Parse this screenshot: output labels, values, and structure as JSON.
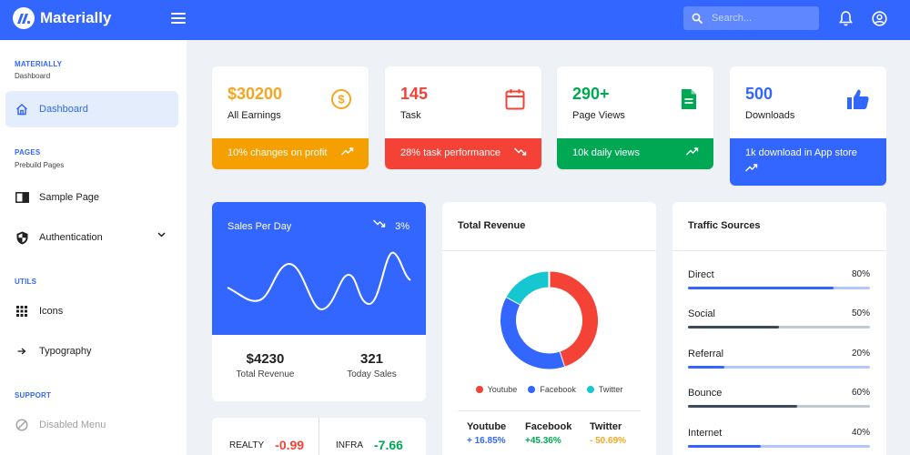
{
  "app": {
    "title": "Materially"
  },
  "header": {
    "search_placeholder": "Search..."
  },
  "sidebar": {
    "sections": [
      {
        "title": "MATERIALLY",
        "subtitle": "Dashboard"
      },
      {
        "title": "PAGES",
        "subtitle": "Prebuild Pages"
      },
      {
        "title": "UTILS"
      },
      {
        "title": "SUPPORT"
      }
    ],
    "items": [
      {
        "label": "Dashboard",
        "icon": "home-icon",
        "active": true
      },
      {
        "label": "Sample Page",
        "icon": "chrome-reader-icon"
      },
      {
        "label": "Authentication",
        "icon": "security-shield-icon"
      },
      {
        "label": "Icons",
        "icon": "apps-grid-icon"
      },
      {
        "label": "Typography",
        "icon": "arrow-right-icon"
      },
      {
        "label": "Disabled Menu",
        "icon": "block-icon",
        "disabled": true
      }
    ]
  },
  "stats": [
    {
      "value": "$30200",
      "label": "All Earnings",
      "footer": "10% changes on profit",
      "color": "#f5a623",
      "footer_bg": "#f5a000"
    },
    {
      "value": "145",
      "label": "Task",
      "footer": "28% task performance",
      "color": "#f44336",
      "footer_bg": "#f44336"
    },
    {
      "value": "290+",
      "label": "Page Views",
      "footer": "10k daily views",
      "color": "#00a854",
      "footer_bg": "#00a854"
    },
    {
      "value": "500",
      "label": "Downloads",
      "footer": "1k download in App store",
      "color": "#3366ff",
      "footer_bg": "#3366ff"
    }
  ],
  "sales": {
    "title": "Sales Per Day",
    "change": "3%",
    "total_revenue_value": "$4230",
    "total_revenue_label": "Total Revenue",
    "today_sales_value": "321",
    "today_sales_label": "Today Sales"
  },
  "tickers": [
    {
      "name": "REALTY",
      "value": "-0.99"
    },
    {
      "name": "INFRA",
      "value": "-7.66"
    }
  ],
  "revenue": {
    "title": "Total Revenue",
    "legend": [
      {
        "name": "Youtube",
        "color": "#f44336"
      },
      {
        "name": "Facebook",
        "color": "#3366ff"
      },
      {
        "name": "Twitter",
        "color": "#16c7d2"
      }
    ],
    "stats": [
      {
        "name": "Youtube",
        "change": "+ 16.85%",
        "color": "#3366ff"
      },
      {
        "name": "Facebook",
        "change": "+45.36%",
        "color": "#00a854"
      },
      {
        "name": "Twitter",
        "change": "- 50.69%",
        "color": "#f5a623"
      }
    ]
  },
  "chart_data": {
    "type": "pie",
    "categories": [
      "Youtube",
      "Facebook",
      "Twitter"
    ],
    "values": [
      45,
      38,
      17
    ],
    "legend": "bottom"
  },
  "traffic": {
    "title": "Traffic Sources",
    "rows": [
      {
        "name": "Direct",
        "value": 80,
        "pct": "80%",
        "color": "#3366ff",
        "track": "#b3c6ff"
      },
      {
        "name": "Social",
        "value": 50,
        "pct": "50%",
        "color": "#3c4a5a",
        "track": "#c3c9d1"
      },
      {
        "name": "Referral",
        "value": 20,
        "pct": "20%",
        "color": "#3366ff",
        "track": "#b3c6ff"
      },
      {
        "name": "Bounce",
        "value": 60,
        "pct": "60%",
        "color": "#3c4a5a",
        "track": "#c3c9d1"
      },
      {
        "name": "Internet",
        "value": 40,
        "pct": "40%",
        "color": "#3366ff",
        "track": "#b3c6ff"
      }
    ]
  }
}
